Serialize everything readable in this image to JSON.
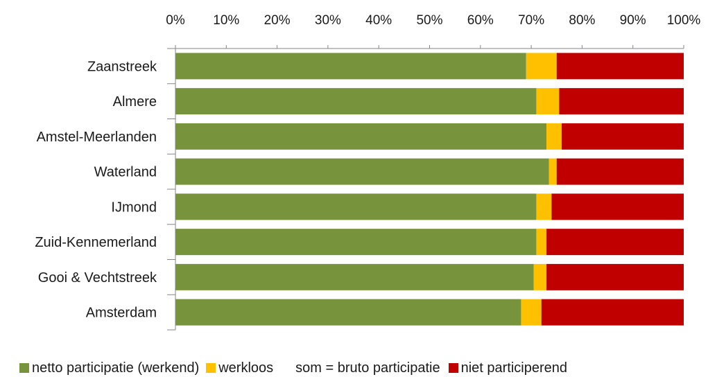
{
  "chart_data": {
    "type": "bar",
    "orientation": "horizontal",
    "stacked": true,
    "categories": [
      "Zaanstreek",
      "Almere",
      "Amstel-Meerlanden",
      "Waterland",
      "IJmond",
      "Zuid-Kennemerland",
      "Gooi & Vechtstreek",
      "Amsterdam"
    ],
    "series": [
      {
        "name": "netto participatie (werkend)",
        "color": "#77933c",
        "values": [
          69,
          71,
          73,
          73.5,
          71,
          71,
          70.5,
          68
        ]
      },
      {
        "name": "werkloos",
        "color": "#ffc000",
        "values": [
          6,
          4.5,
          3,
          1.5,
          3,
          2,
          2.5,
          4
        ]
      },
      {
        "name": "niet participerend",
        "color": "#c00000",
        "values": [
          25,
          24.5,
          24,
          25,
          26,
          27,
          27,
          28
        ]
      }
    ],
    "x_ticks": [
      "0%",
      "10%",
      "20%",
      "30%",
      "40%",
      "50%",
      "60%",
      "70%",
      "80%",
      "90%",
      "100%"
    ],
    "xlim": [
      0,
      100
    ],
    "x_axis_position": "top",
    "grid": false,
    "legend_position": "bottom",
    "legend_note": "som = bruto participatie"
  }
}
